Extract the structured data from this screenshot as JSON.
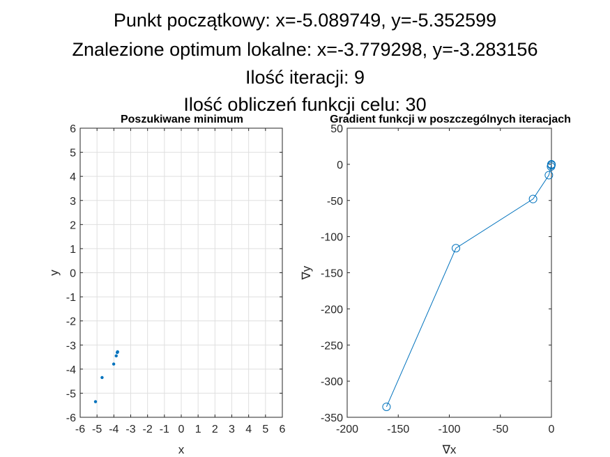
{
  "header": {
    "lines": [
      "Punkt początkowy: x=-5.089749, y=-5.352599",
      "Znalezione optimum lokalne: x=-3.779298, y=-3.283156",
      "Ilość iteracji: 9",
      "Ilość obliczeń funkcji celu: 30"
    ]
  },
  "colors": {
    "series": "#0072BD",
    "grid": "#DFDFDF",
    "axis": "#262626"
  },
  "chart_data": [
    {
      "type": "scatter",
      "title": "Poszukiwane minimum",
      "xlabel": "x",
      "ylabel": "y",
      "xlim": [
        -6,
        6
      ],
      "ylim": [
        -6,
        6
      ],
      "xticks": [
        -6,
        -5,
        -4,
        -3,
        -2,
        -1,
        0,
        1,
        2,
        3,
        4,
        5,
        6
      ],
      "yticks": [
        -6,
        -5,
        -4,
        -3,
        -2,
        -1,
        0,
        1,
        2,
        3,
        4,
        5,
        6
      ],
      "grid": true,
      "points": [
        {
          "x": -5.09,
          "y": -5.35
        },
        {
          "x": -4.7,
          "y": -4.35
        },
        {
          "x": -4.01,
          "y": -3.79
        },
        {
          "x": -3.86,
          "y": -3.45
        },
        {
          "x": -3.8,
          "y": -3.31
        },
        {
          "x": -3.78,
          "y": -3.29
        },
        {
          "x": -3.78,
          "y": -3.28
        }
      ]
    },
    {
      "type": "line",
      "title": "Gradient funkcji w  poszczególnych iteracjach",
      "xlabel": "∇x",
      "ylabel": "∇y",
      "xlim": [
        -200,
        0
      ],
      "ylim": [
        -350,
        50
      ],
      "xticks": [
        -200,
        -150,
        -100,
        -50,
        0
      ],
      "yticks": [
        -350,
        -300,
        -250,
        -200,
        -150,
        -100,
        -50,
        0,
        50
      ],
      "grid": false,
      "marker": "circle",
      "points": [
        {
          "x": -161.5,
          "y": -335.5
        },
        {
          "x": -93.5,
          "y": -116.0
        },
        {
          "x": -18.0,
          "y": -48.0
        },
        {
          "x": -2.5,
          "y": -15.0
        },
        {
          "x": -0.4,
          "y": -3.0
        },
        {
          "x": -0.1,
          "y": -0.5
        },
        {
          "x": 0.0,
          "y": 0.0
        },
        {
          "x": 0.0,
          "y": -1.0
        }
      ]
    }
  ]
}
